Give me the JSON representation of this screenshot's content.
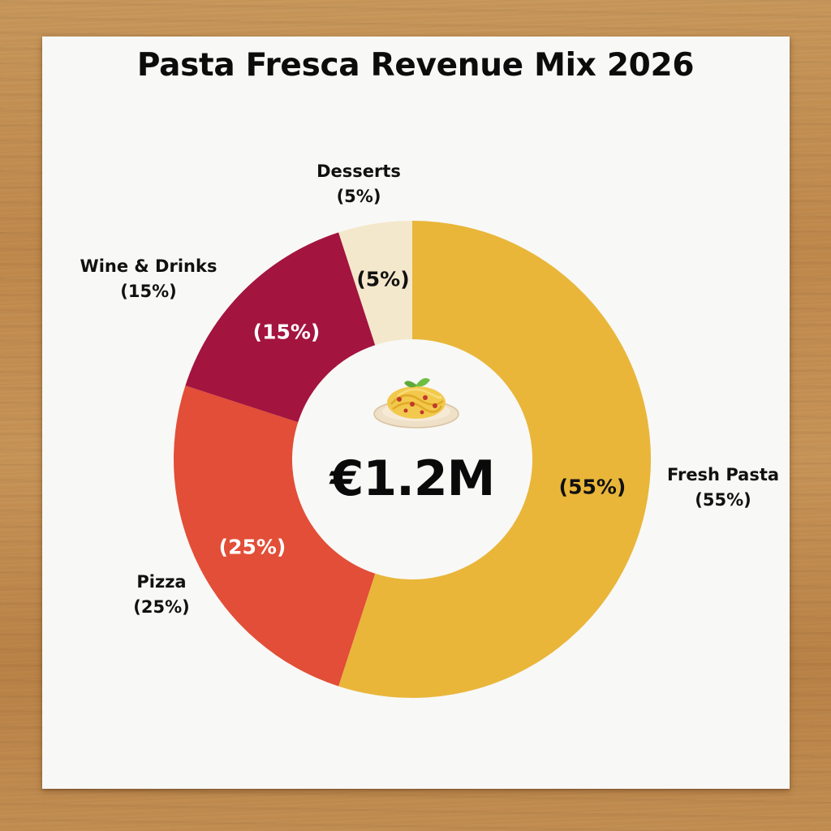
{
  "title": "Pasta Fresca Revenue Mix 2026",
  "center": {
    "value": "€1.2M",
    "icon": "pasta-plate-icon"
  },
  "segments": [
    {
      "name": "Fresh Pasta",
      "percent_label": "(55%)",
      "value": 55,
      "color": "#e9b63a",
      "inner_text_color": "#111111"
    },
    {
      "name": "Pizza",
      "percent_label": "(25%)",
      "value": 25,
      "color": "#e24e37",
      "inner_text_color": "#ffffff"
    },
    {
      "name": "Wine & Drinks",
      "percent_label": "(15%)",
      "value": 15,
      "color": "#a3143f",
      "inner_text_color": "#ffffff"
    },
    {
      "name": "Desserts",
      "percent_label": "(5%)",
      "value": 5,
      "color": "#f4e8cc",
      "inner_text_color": "#111111"
    }
  ],
  "chart_data": {
    "type": "pie",
    "subtype": "donut",
    "title": "Pasta Fresca Revenue Mix 2026",
    "center_label": "€1.2M",
    "categories": [
      "Fresh Pasta",
      "Pizza",
      "Wine & Drinks",
      "Desserts"
    ],
    "values": [
      55,
      25,
      15,
      5
    ],
    "unit": "%",
    "colors": [
      "#e9b63a",
      "#e24e37",
      "#a3143f",
      "#f4e8cc"
    ],
    "start_angle": "12 o'clock",
    "direction": "clockwise",
    "legend": "none (outside labels)",
    "data_labels": [
      "(55%)",
      "(25%)",
      "(15%)",
      "(5%)"
    ]
  }
}
